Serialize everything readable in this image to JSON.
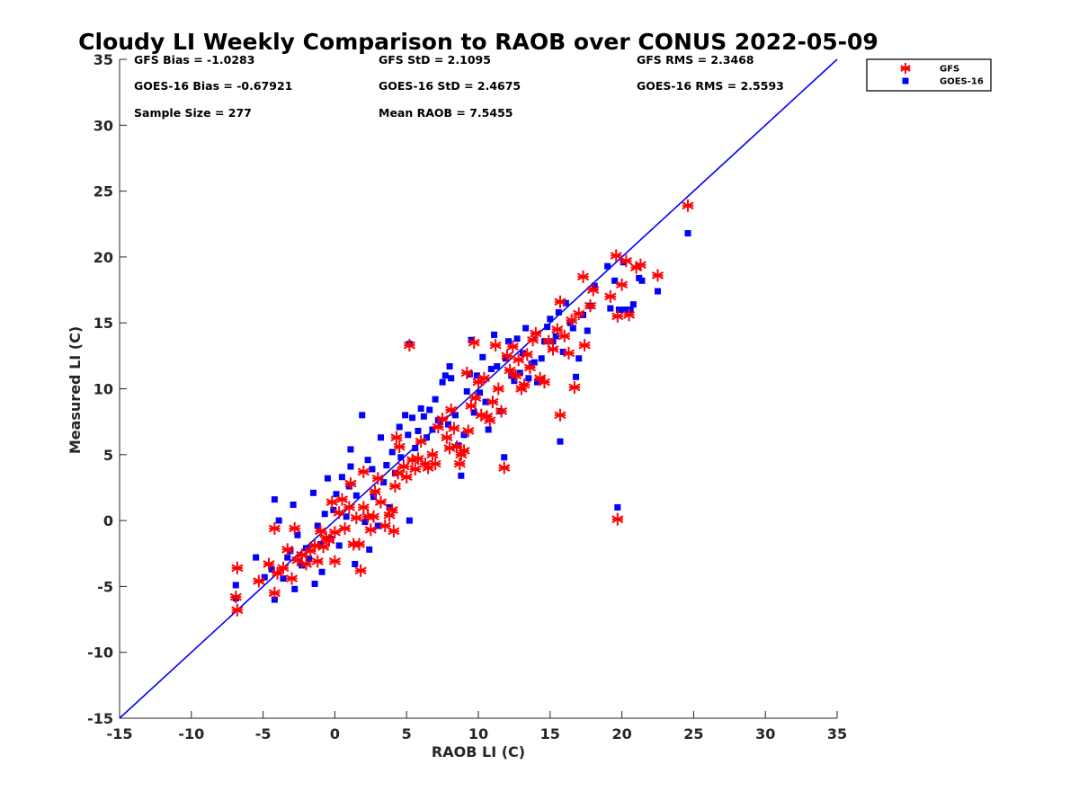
{
  "chart_data": {
    "type": "scatter",
    "title": "Cloudy LI Weekly Comparison to RAOB over CONUS 2022-05-09",
    "xlabel": "RAOB LI (C)",
    "ylabel": "Measured LI (C)",
    "xlim": [
      -15,
      35
    ],
    "ylim": [
      -15,
      35
    ],
    "xticks": [
      -15,
      -10,
      -5,
      0,
      5,
      10,
      15,
      20,
      25,
      30,
      35
    ],
    "yticks": [
      -15,
      -10,
      -5,
      0,
      5,
      10,
      15,
      20,
      25,
      30,
      35
    ],
    "grid": false,
    "legend_position": "outside-top-right",
    "reference_line": {
      "x": [
        -15,
        35
      ],
      "y": [
        -15,
        35
      ],
      "color": "#0000ff"
    },
    "stats": [
      [
        "GFS Bias = -1.0283",
        "GFS StD = 2.1095",
        "GFS RMS = 2.3468"
      ],
      [
        "GOES-16 Bias = -0.67921",
        "GOES-16 StD = 2.4675",
        "GOES-16 RMS = 2.5593"
      ],
      [
        "Sample Size = 277",
        "Mean RAOB = 7.5455",
        ""
      ]
    ],
    "series": [
      {
        "name": "GFS",
        "marker": "asterisk",
        "color": "#ff0000",
        "points": [
          [
            -6.8,
            -3.6
          ],
          [
            -6.9,
            -5.8
          ],
          [
            -6.8,
            -6.8
          ],
          [
            -5.3,
            -4.6
          ],
          [
            -4.6,
            -3.3
          ],
          [
            -4.2,
            -5.5
          ],
          [
            -4.2,
            -0.6
          ],
          [
            -4.0,
            -4.0
          ],
          [
            -3.6,
            -3.6
          ],
          [
            -3.3,
            -2.2
          ],
          [
            -3.0,
            -4.4
          ],
          [
            -2.8,
            -0.6
          ],
          [
            -2.6,
            -3.0
          ],
          [
            -2.3,
            -2.6
          ],
          [
            -2.0,
            -3.3
          ],
          [
            -1.7,
            -2.3
          ],
          [
            -1.4,
            -1.9
          ],
          [
            -1.2,
            -3.1
          ],
          [
            -1.0,
            -0.8
          ],
          [
            -0.8,
            -2.0
          ],
          [
            -0.6,
            -1.3
          ],
          [
            -0.4,
            -1.5
          ],
          [
            -0.2,
            1.4
          ],
          [
            0.0,
            -0.9
          ],
          [
            0.0,
            -3.1
          ],
          [
            0.3,
            0.6
          ],
          [
            0.5,
            1.6
          ],
          [
            0.7,
            -0.6
          ],
          [
            1.0,
            1.0
          ],
          [
            1.1,
            2.8
          ],
          [
            1.3,
            -1.8
          ],
          [
            1.5,
            0.2
          ],
          [
            1.7,
            -1.8
          ],
          [
            1.8,
            -3.8
          ],
          [
            2.0,
            1.0
          ],
          [
            2.0,
            3.7
          ],
          [
            2.3,
            0.3
          ],
          [
            2.5,
            -0.7
          ],
          [
            2.7,
            0.3
          ],
          [
            2.8,
            2.2
          ],
          [
            3.0,
            3.2
          ],
          [
            3.2,
            1.4
          ],
          [
            3.5,
            -0.4
          ],
          [
            3.8,
            0.4
          ],
          [
            4.0,
            0.8
          ],
          [
            4.1,
            -0.8
          ],
          [
            4.2,
            2.6
          ],
          [
            4.4,
            3.6
          ],
          [
            4.5,
            5.6
          ],
          [
            4.3,
            6.3
          ],
          [
            4.8,
            4.1
          ],
          [
            5.0,
            3.3
          ],
          [
            5.2,
            13.3
          ],
          [
            5.4,
            4.6
          ],
          [
            5.6,
            3.9
          ],
          [
            5.8,
            4.7
          ],
          [
            6.0,
            6.0
          ],
          [
            6.3,
            4.3
          ],
          [
            6.5,
            4.0
          ],
          [
            6.8,
            5.0
          ],
          [
            7.0,
            4.3
          ],
          [
            7.2,
            7.1
          ],
          [
            7.5,
            7.7
          ],
          [
            7.8,
            6.3
          ],
          [
            8.0,
            5.5
          ],
          [
            8.1,
            8.4
          ],
          [
            8.3,
            7.0
          ],
          [
            8.5,
            5.6
          ],
          [
            8.7,
            4.3
          ],
          [
            8.8,
            5.0
          ],
          [
            9.0,
            5.3
          ],
          [
            9.2,
            11.2
          ],
          [
            9.3,
            6.8
          ],
          [
            9.5,
            8.7
          ],
          [
            9.7,
            13.5
          ],
          [
            9.8,
            9.3
          ],
          [
            10.0,
            10.5
          ],
          [
            10.2,
            8.0
          ],
          [
            10.4,
            10.8
          ],
          [
            10.6,
            7.9
          ],
          [
            10.8,
            7.6
          ],
          [
            11.0,
            9.0
          ],
          [
            11.2,
            13.3
          ],
          [
            11.4,
            10.0
          ],
          [
            11.6,
            8.3
          ],
          [
            11.8,
            4.0
          ],
          [
            12.0,
            12.5
          ],
          [
            12.2,
            11.4
          ],
          [
            12.4,
            13.2
          ],
          [
            12.6,
            11.0
          ],
          [
            12.8,
            12.2
          ],
          [
            13.0,
            10.0
          ],
          [
            13.2,
            10.3
          ],
          [
            13.4,
            12.6
          ],
          [
            13.6,
            11.6
          ],
          [
            13.8,
            13.7
          ],
          [
            14.0,
            14.2
          ],
          [
            14.3,
            10.8
          ],
          [
            14.6,
            10.5
          ],
          [
            14.9,
            13.6
          ],
          [
            15.2,
            13.0
          ],
          [
            15.5,
            14.5
          ],
          [
            15.7,
            16.6
          ],
          [
            15.7,
            8.0
          ],
          [
            16.0,
            14.0
          ],
          [
            16.3,
            12.7
          ],
          [
            16.5,
            15.2
          ],
          [
            16.7,
            10.1
          ],
          [
            17.0,
            15.7
          ],
          [
            17.3,
            18.5
          ],
          [
            17.4,
            13.3
          ],
          [
            17.8,
            16.3
          ],
          [
            18.0,
            17.5
          ],
          [
            19.2,
            17.0
          ],
          [
            19.6,
            20.1
          ],
          [
            19.7,
            15.5
          ],
          [
            19.7,
            0.1
          ],
          [
            20.0,
            17.9
          ],
          [
            20.3,
            19.7
          ],
          [
            20.5,
            15.6
          ],
          [
            21.0,
            19.2
          ],
          [
            21.3,
            19.4
          ],
          [
            22.5,
            18.6
          ],
          [
            24.6,
            23.9
          ]
        ]
      },
      {
        "name": "GOES-16",
        "marker": "square",
        "color": "#0000ff",
        "points": [
          [
            -6.9,
            -4.9
          ],
          [
            -6.9,
            -5.9
          ],
          [
            -5.5,
            -2.8
          ],
          [
            -4.9,
            -4.3
          ],
          [
            -4.4,
            -3.7
          ],
          [
            -4.2,
            1.6
          ],
          [
            -4.2,
            -6.0
          ],
          [
            -3.9,
            0.0
          ],
          [
            -3.6,
            -4.4
          ],
          [
            -3.3,
            -2.8
          ],
          [
            -3.1,
            -2.3
          ],
          [
            -2.9,
            1.2
          ],
          [
            -2.8,
            -5.2
          ],
          [
            -2.6,
            -1.1
          ],
          [
            -2.3,
            -3.4
          ],
          [
            -2.0,
            -2.1
          ],
          [
            -1.8,
            -2.9
          ],
          [
            -1.5,
            2.1
          ],
          [
            -1.4,
            -4.8
          ],
          [
            -1.2,
            -0.4
          ],
          [
            -1.0,
            -1.8
          ],
          [
            -0.9,
            -3.9
          ],
          [
            -0.7,
            0.5
          ],
          [
            -0.5,
            3.2
          ],
          [
            -0.3,
            -1.4
          ],
          [
            -0.1,
            0.8
          ],
          [
            0.1,
            2.0
          ],
          [
            0.3,
            -1.9
          ],
          [
            0.5,
            3.3
          ],
          [
            0.8,
            0.3
          ],
          [
            1.0,
            2.6
          ],
          [
            1.1,
            4.1
          ],
          [
            1.1,
            5.4
          ],
          [
            1.4,
            -3.3
          ],
          [
            1.5,
            1.9
          ],
          [
            1.9,
            8.0
          ],
          [
            2.1,
            -0.1
          ],
          [
            2.3,
            4.6
          ],
          [
            2.4,
            -2.2
          ],
          [
            2.6,
            3.9
          ],
          [
            2.7,
            1.8
          ],
          [
            3.0,
            -0.4
          ],
          [
            3.2,
            6.3
          ],
          [
            3.4,
            2.9
          ],
          [
            3.6,
            4.2
          ],
          [
            3.8,
            1.0
          ],
          [
            4.0,
            5.2
          ],
          [
            4.2,
            3.6
          ],
          [
            4.5,
            7.1
          ],
          [
            4.6,
            4.8
          ],
          [
            4.9,
            8.0
          ],
          [
            5.1,
            6.5
          ],
          [
            5.2,
            0.0
          ],
          [
            5.2,
            13.4
          ],
          [
            5.4,
            7.8
          ],
          [
            5.6,
            5.5
          ],
          [
            5.8,
            6.8
          ],
          [
            6.0,
            8.5
          ],
          [
            6.2,
            7.9
          ],
          [
            6.4,
            6.3
          ],
          [
            6.6,
            8.4
          ],
          [
            6.8,
            6.9
          ],
          [
            7.0,
            9.2
          ],
          [
            7.2,
            7.6
          ],
          [
            7.5,
            10.5
          ],
          [
            7.7,
            11.0
          ],
          [
            7.9,
            7.3
          ],
          [
            8.0,
            11.7
          ],
          [
            8.1,
            10.8
          ],
          [
            8.4,
            8.0
          ],
          [
            8.6,
            5.7
          ],
          [
            8.8,
            3.4
          ],
          [
            9.0,
            6.5
          ],
          [
            9.2,
            9.8
          ],
          [
            9.4,
            11.1
          ],
          [
            9.5,
            13.7
          ],
          [
            9.7,
            8.2
          ],
          [
            9.9,
            11.0
          ],
          [
            10.1,
            9.7
          ],
          [
            10.3,
            12.4
          ],
          [
            10.5,
            9.0
          ],
          [
            10.7,
            6.9
          ],
          [
            10.9,
            11.5
          ],
          [
            11.1,
            14.1
          ],
          [
            11.3,
            11.7
          ],
          [
            11.5,
            8.3
          ],
          [
            11.8,
            4.8
          ],
          [
            11.9,
            12.3
          ],
          [
            12.1,
            13.6
          ],
          [
            12.3,
            11.0
          ],
          [
            12.5,
            10.6
          ],
          [
            12.7,
            13.8
          ],
          [
            12.9,
            11.2
          ],
          [
            13.1,
            12.7
          ],
          [
            13.3,
            14.6
          ],
          [
            13.5,
            10.8
          ],
          [
            13.7,
            11.9
          ],
          [
            13.9,
            12.0
          ],
          [
            14.1,
            10.5
          ],
          [
            14.4,
            12.3
          ],
          [
            14.6,
            13.6
          ],
          [
            14.8,
            14.7
          ],
          [
            15.0,
            15.3
          ],
          [
            15.2,
            13.6
          ],
          [
            15.4,
            14.0
          ],
          [
            15.6,
            15.8
          ],
          [
            15.7,
            6.0
          ],
          [
            15.9,
            12.8
          ],
          [
            16.1,
            16.5
          ],
          [
            16.4,
            15.0
          ],
          [
            16.6,
            14.6
          ],
          [
            16.8,
            10.9
          ],
          [
            17.0,
            12.3
          ],
          [
            17.3,
            15.6
          ],
          [
            17.6,
            14.4
          ],
          [
            17.8,
            16.3
          ],
          [
            18.1,
            17.8
          ],
          [
            19.0,
            19.3
          ],
          [
            19.2,
            16.1
          ],
          [
            19.5,
            18.2
          ],
          [
            19.7,
            1.0
          ],
          [
            19.8,
            16.0
          ],
          [
            20.1,
            19.6
          ],
          [
            20.2,
            16.0
          ],
          [
            20.6,
            16.0
          ],
          [
            20.8,
            16.4
          ],
          [
            21.2,
            18.4
          ],
          [
            21.4,
            18.2
          ],
          [
            22.5,
            17.4
          ],
          [
            24.6,
            21.8
          ]
        ]
      }
    ]
  }
}
